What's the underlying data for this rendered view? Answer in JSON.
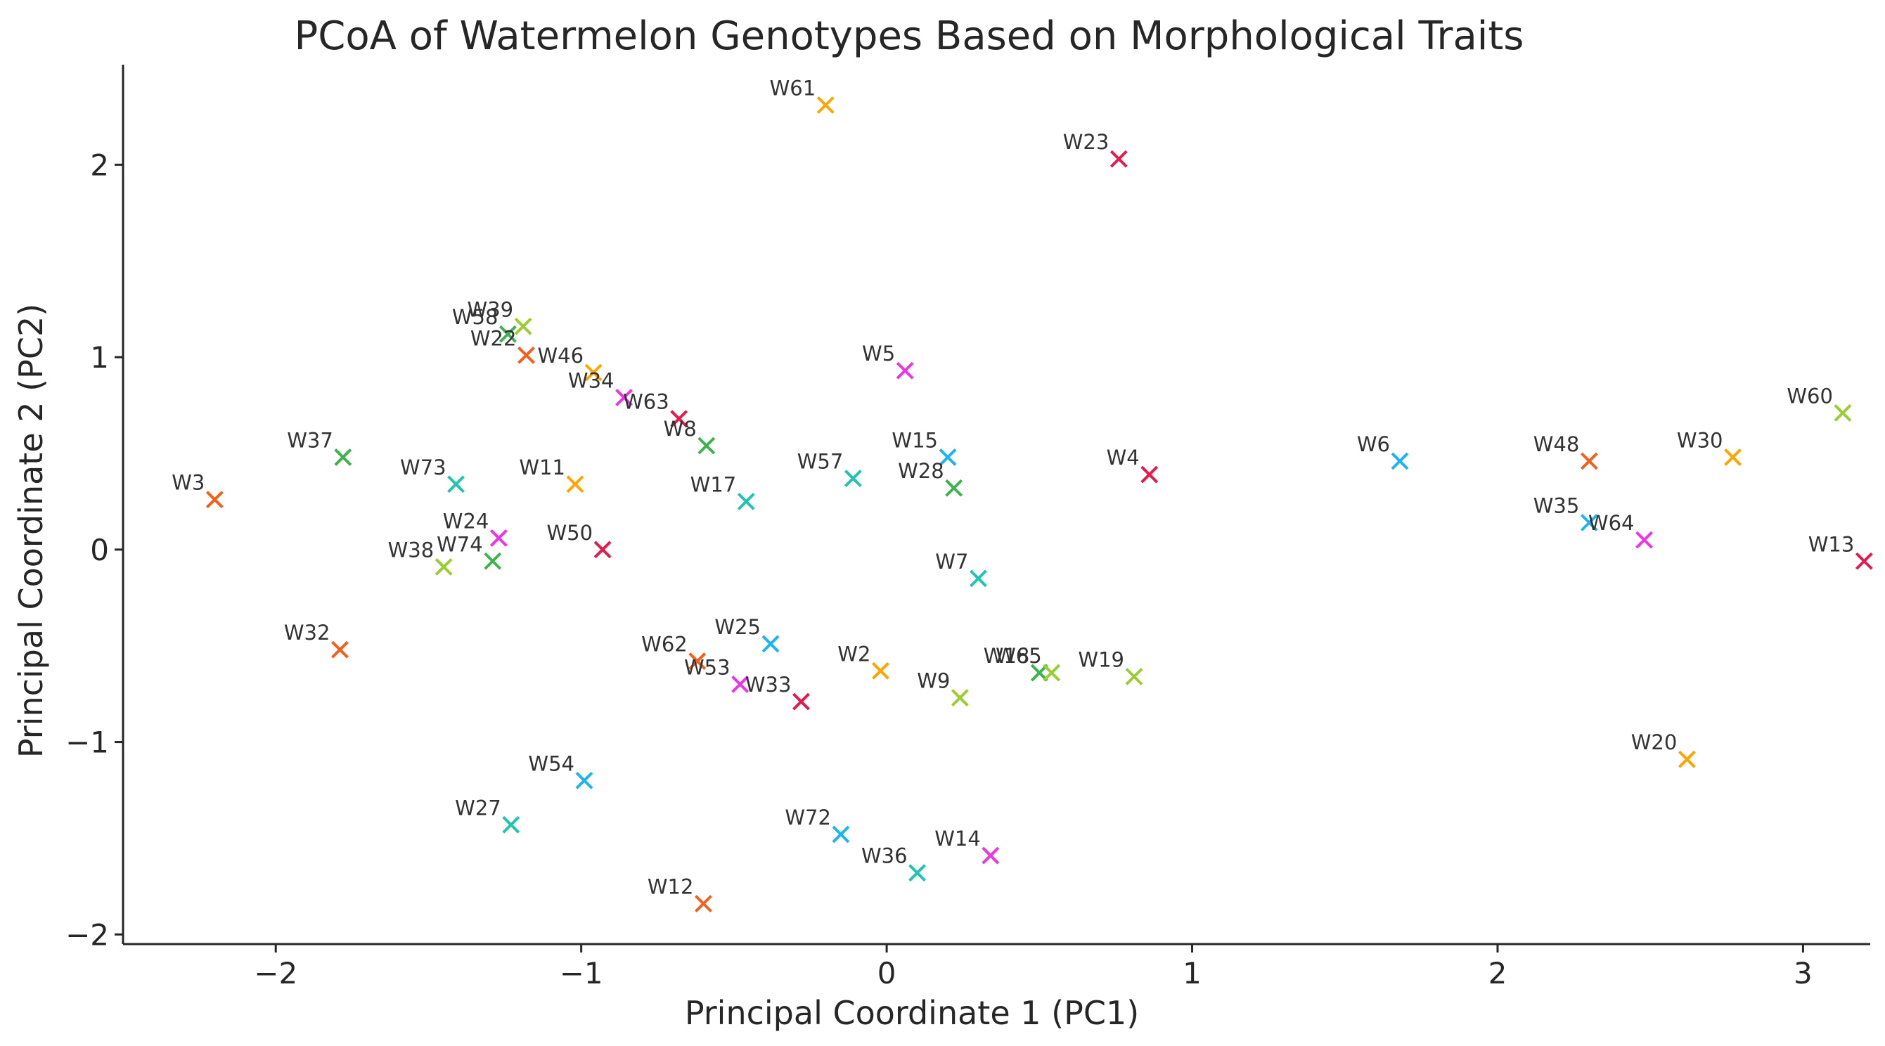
{
  "chart_data": {
    "type": "scatter",
    "title": "PCoA of Watermelon Genotypes Based on Morphological Traits",
    "xlabel": "Principal Coordinate 1 (PC1)",
    "ylabel": "Principal Coordinate 2 (PC2)",
    "xlim": [
      -2.5,
      3.22
    ],
    "ylim": [
      -2.05,
      2.52
    ],
    "xticks": [
      -2,
      -1,
      0,
      1,
      2,
      3
    ],
    "yticks": [
      -2,
      -1,
      0,
      1,
      2
    ],
    "xtick_labels": [
      "−2",
      "−1",
      "0",
      "1",
      "2",
      "3"
    ],
    "ytick_labels": [
      "−2",
      "−1",
      "0",
      "1",
      "2"
    ],
    "grid": false,
    "marker": "x",
    "points": [
      {
        "label": "W61",
        "x": -0.2,
        "y": 2.31,
        "color": "#ffa500"
      },
      {
        "label": "W23",
        "x": 0.76,
        "y": 2.03,
        "color": "#e6194b"
      },
      {
        "label": "W39",
        "x": -1.19,
        "y": 1.16,
        "color": "#9acd32"
      },
      {
        "label": "W58",
        "x": -1.24,
        "y": 1.12,
        "color": "#3cb44b"
      },
      {
        "label": "W22",
        "x": -1.18,
        "y": 1.01,
        "color": "#f45f1c"
      },
      {
        "label": "W46",
        "x": -0.96,
        "y": 0.92,
        "color": "#ffa500"
      },
      {
        "label": "W5",
        "x": 0.06,
        "y": 0.93,
        "color": "#f032e6"
      },
      {
        "label": "W34",
        "x": -0.86,
        "y": 0.79,
        "color": "#f032e6"
      },
      {
        "label": "W63",
        "x": -0.68,
        "y": 0.68,
        "color": "#e6194b"
      },
      {
        "label": "W8",
        "x": -0.59,
        "y": 0.54,
        "color": "#3cb44b"
      },
      {
        "label": "W60",
        "x": 3.13,
        "y": 0.71,
        "color": "#9acd32"
      },
      {
        "label": "W37",
        "x": -1.78,
        "y": 0.48,
        "color": "#3cb44b"
      },
      {
        "label": "W15",
        "x": 0.2,
        "y": 0.48,
        "color": "#1eb4f0"
      },
      {
        "label": "W6",
        "x": 1.68,
        "y": 0.46,
        "color": "#1eb4f0"
      },
      {
        "label": "W48",
        "x": 2.3,
        "y": 0.46,
        "color": "#f45f1c"
      },
      {
        "label": "W30",
        "x": 2.77,
        "y": 0.48,
        "color": "#ffa500"
      },
      {
        "label": "W4",
        "x": 0.86,
        "y": 0.39,
        "color": "#e6194b"
      },
      {
        "label": "W57",
        "x": -0.11,
        "y": 0.37,
        "color": "#20c4b0"
      },
      {
        "label": "W73",
        "x": -1.41,
        "y": 0.34,
        "color": "#20c4b0"
      },
      {
        "label": "W11",
        "x": -1.02,
        "y": 0.34,
        "color": "#ffa500"
      },
      {
        "label": "W28",
        "x": 0.22,
        "y": 0.32,
        "color": "#3cb44b"
      },
      {
        "label": "W3",
        "x": -2.2,
        "y": 0.26,
        "color": "#f45f1c"
      },
      {
        "label": "W17",
        "x": -0.46,
        "y": 0.25,
        "color": "#20c4b0"
      },
      {
        "label": "W35",
        "x": 2.3,
        "y": 0.14,
        "color": "#1eb4f0"
      },
      {
        "label": "W64",
        "x": 2.48,
        "y": 0.05,
        "color": "#f032e6"
      },
      {
        "label": "W24",
        "x": -1.27,
        "y": 0.06,
        "color": "#f032e6"
      },
      {
        "label": "W50",
        "x": -0.93,
        "y": 0.0,
        "color": "#e6194b"
      },
      {
        "label": "W13",
        "x": 3.2,
        "y": -0.06,
        "color": "#e6194b"
      },
      {
        "label": "W74",
        "x": -1.29,
        "y": -0.06,
        "color": "#3cb44b"
      },
      {
        "label": "W38",
        "x": -1.45,
        "y": -0.09,
        "color": "#9acd32"
      },
      {
        "label": "W7",
        "x": 0.3,
        "y": -0.15,
        "color": "#20c4b0"
      },
      {
        "label": "W25",
        "x": -0.38,
        "y": -0.49,
        "color": "#1eb4f0"
      },
      {
        "label": "W32",
        "x": -1.79,
        "y": -0.52,
        "color": "#f45f1c"
      },
      {
        "label": "W62",
        "x": -0.62,
        "y": -0.58,
        "color": "#f45f1c"
      },
      {
        "label": "W2",
        "x": -0.02,
        "y": -0.63,
        "color": "#ffa500"
      },
      {
        "label": "W18",
        "x": 0.5,
        "y": -0.64,
        "color": "#3cb44b"
      },
      {
        "label": "W65",
        "x": 0.54,
        "y": -0.64,
        "color": "#9acd32"
      },
      {
        "label": "W19",
        "x": 0.81,
        "y": -0.66,
        "color": "#9acd32"
      },
      {
        "label": "W53",
        "x": -0.48,
        "y": -0.7,
        "color": "#f032e6"
      },
      {
        "label": "W9",
        "x": 0.24,
        "y": -0.77,
        "color": "#9acd32"
      },
      {
        "label": "W33",
        "x": -0.28,
        "y": -0.79,
        "color": "#e6194b"
      },
      {
        "label": "W20",
        "x": 2.62,
        "y": -1.09,
        "color": "#ffa500"
      },
      {
        "label": "W54",
        "x": -0.99,
        "y": -1.2,
        "color": "#1eb4f0"
      },
      {
        "label": "W27",
        "x": -1.23,
        "y": -1.43,
        "color": "#20c4b0"
      },
      {
        "label": "W72",
        "x": -0.15,
        "y": -1.48,
        "color": "#1eb4f0"
      },
      {
        "label": "W14",
        "x": 0.34,
        "y": -1.59,
        "color": "#f032e6"
      },
      {
        "label": "W36",
        "x": 0.1,
        "y": -1.68,
        "color": "#20c4b0"
      },
      {
        "label": "W12",
        "x": -0.6,
        "y": -1.84,
        "color": "#f45f1c"
      }
    ]
  }
}
